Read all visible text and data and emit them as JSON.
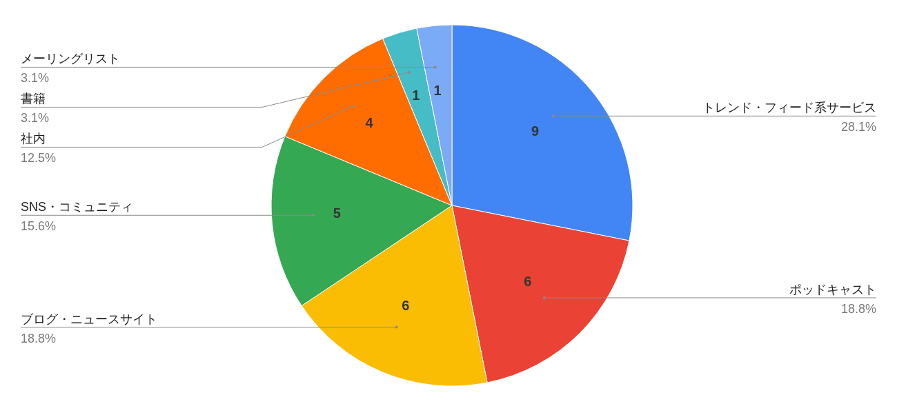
{
  "chart_data": {
    "type": "pie",
    "categories": [
      "トレンド・フィード系サービス",
      "ポッドキャスト",
      "ブログ・ニュースサイト",
      "SNS・コミュニティ",
      "社内",
      "書籍",
      "メーリングリスト"
    ],
    "values": [
      9,
      6,
      6,
      5,
      4,
      1,
      1
    ],
    "colors": [
      "#4285f4",
      "#ea4335",
      "#fbbc04",
      "#34a853",
      "#ff6d01",
      "#46bdc6",
      "#7baaf7"
    ],
    "data_labels": true,
    "annotations": [
      {
        "text": "28.1%",
        "x": "トレンド・フィード系サービス"
      },
      {
        "text": "18.8%",
        "x": "ポッドキャスト"
      },
      {
        "text": "18.8%",
        "x": "ブログ・ニュースサイト"
      },
      {
        "text": "15.6%",
        "x": "SNS・コミュニティ"
      },
      {
        "text": "12.5%",
        "x": "社内"
      },
      {
        "text": "3.1%",
        "x": "書籍"
      },
      {
        "text": "3.1%",
        "x": "メーリングリスト"
      }
    ],
    "legend": false
  }
}
